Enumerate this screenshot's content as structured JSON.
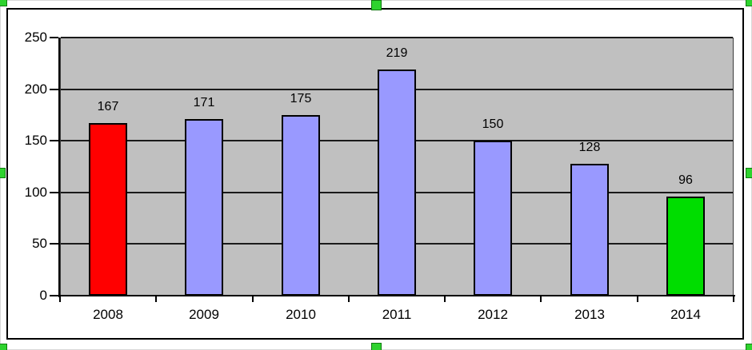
{
  "chart_data": {
    "type": "bar",
    "title": "",
    "xlabel": "",
    "ylabel": "",
    "categories": [
      "2008",
      "2009",
      "2010",
      "2011",
      "2012",
      "2013",
      "2014"
    ],
    "values": [
      167,
      171,
      175,
      219,
      150,
      128,
      96
    ],
    "data_labels": [
      "167",
      "171",
      "175",
      "219",
      "150",
      "128",
      "96"
    ],
    "bar_colors": [
      "#ff0000",
      "#9999ff",
      "#9999ff",
      "#9999ff",
      "#9999ff",
      "#9999ff",
      "#00dd00"
    ],
    "ylim": [
      0,
      250
    ],
    "ytick_interval": 50,
    "yticks": [
      "0",
      "50",
      "100",
      "150",
      "200",
      "250"
    ],
    "grid": "horizontal-on",
    "legend": "none"
  },
  "colors": {
    "chart_background": "#ffffff",
    "plot_background": "#c0c0c0",
    "gridline": "#1a1a1a",
    "axis": "#000000",
    "bar_border": "#000000",
    "text": "#000000",
    "frame_border": "#000000",
    "selection_handle_fill": "#2ed32e",
    "selection_handle_border": "#0f7a0f"
  },
  "selection": {
    "object": "chart-object-selected",
    "handles": [
      "top-left",
      "top-center",
      "top-right",
      "middle-left",
      "middle-right",
      "bottom-left",
      "bottom-center",
      "bottom-right"
    ]
  }
}
